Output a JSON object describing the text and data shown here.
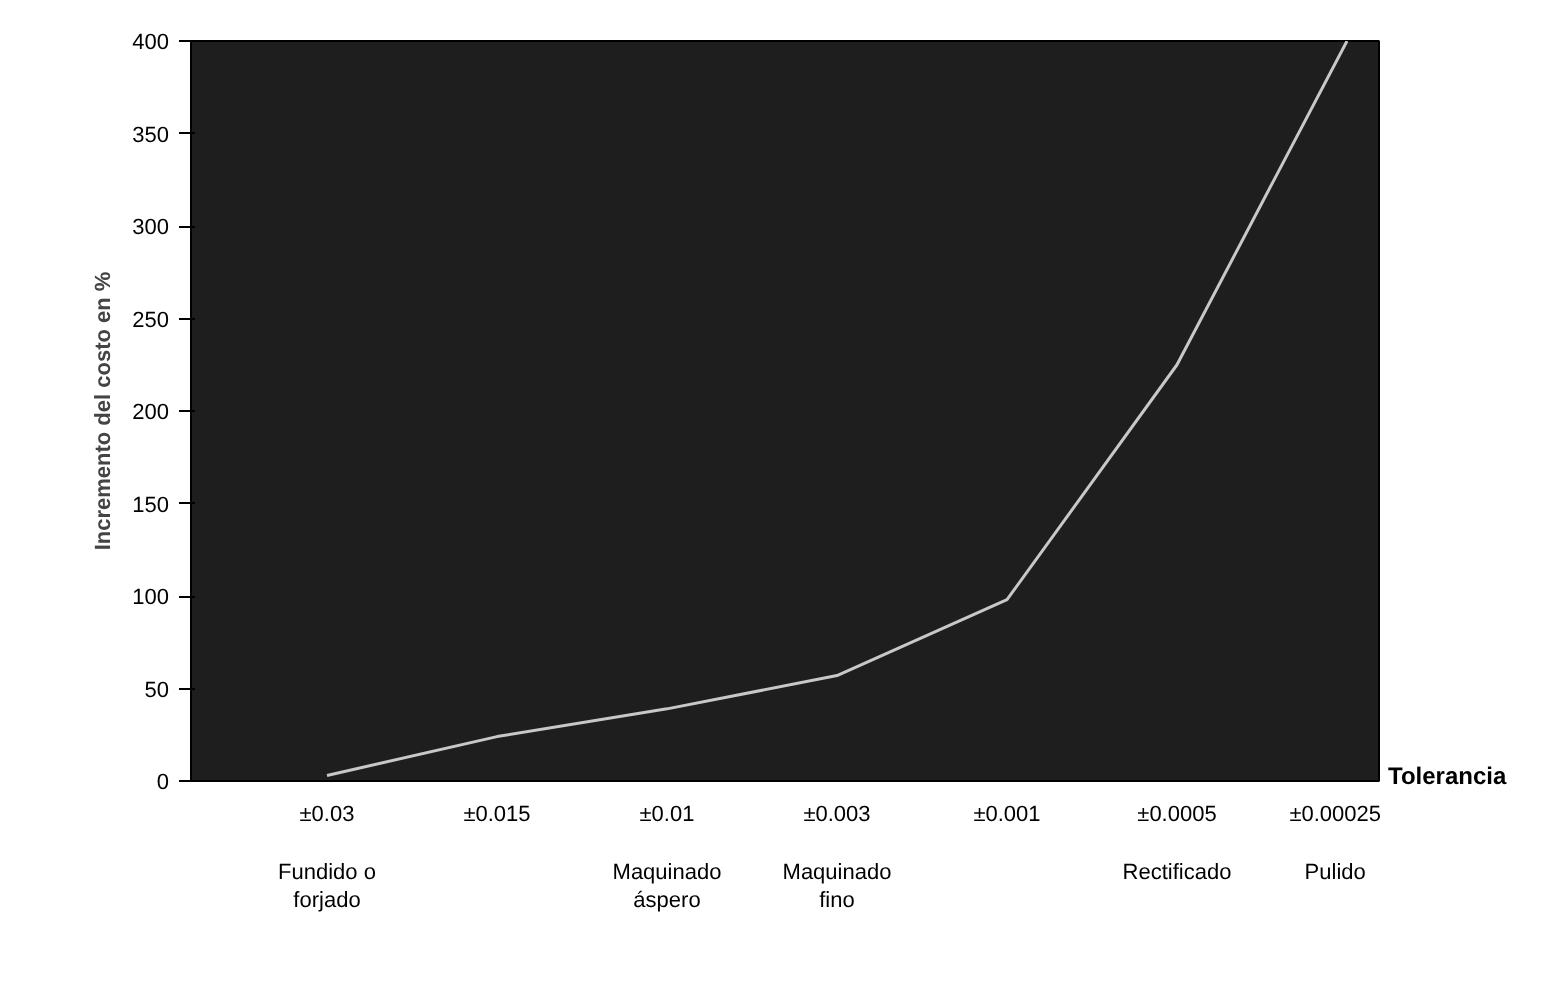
{
  "chart_data": {
    "type": "line",
    "xlabel": "Tolerancia",
    "ylabel": "Incremento del costo en %",
    "categories": [
      "±0.03",
      "±0.015",
      "±0.01",
      "±0.003",
      "±0.001",
      "±0.0005",
      "±0.00025"
    ],
    "series": [
      {
        "color": "#c8c8c8",
        "values": [
          3,
          24,
          39,
          57,
          98,
          225,
          400
        ]
      }
    ],
    "ylim": [
      0,
      400
    ],
    "yticks": [
      0,
      50,
      100,
      150,
      200,
      250,
      300,
      350,
      400
    ],
    "grid": false,
    "marker": "none",
    "line_style": "solid",
    "annotations": [
      "Fundido o\nforjado",
      "Maquinado\náspero",
      "Maquinado\nfino",
      "Rectificado",
      "Pulido"
    ]
  }
}
